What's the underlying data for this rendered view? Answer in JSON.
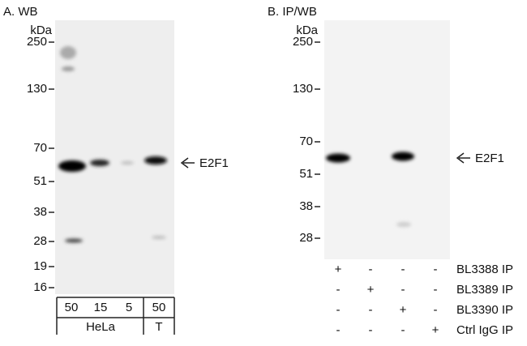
{
  "panel_a": {
    "title": "A. WB",
    "unit": "kDa",
    "markers": [
      "250",
      "130",
      "70",
      "51",
      "38",
      "28",
      "19",
      "16"
    ],
    "target": "E2F1",
    "loads": [
      "50",
      "15",
      "5",
      "50"
    ],
    "groups": [
      "HeLa",
      "T"
    ]
  },
  "panel_b": {
    "title": "B. IP/WB",
    "unit": "kDa",
    "markers": [
      "250",
      "130",
      "70",
      "51",
      "38",
      "28"
    ],
    "target": "E2F1",
    "rows": [
      {
        "symbols": [
          "+",
          "-",
          "-",
          "-"
        ],
        "label": "BL3388 IP"
      },
      {
        "symbols": [
          "-",
          "+",
          "-",
          "-"
        ],
        "label": "BL3389 IP"
      },
      {
        "symbols": [
          "-",
          "-",
          "+",
          "-"
        ],
        "label": "BL3390 IP"
      },
      {
        "symbols": [
          "-",
          "-",
          "-",
          "+"
        ],
        "label": "Ctrl IgG IP"
      }
    ]
  }
}
